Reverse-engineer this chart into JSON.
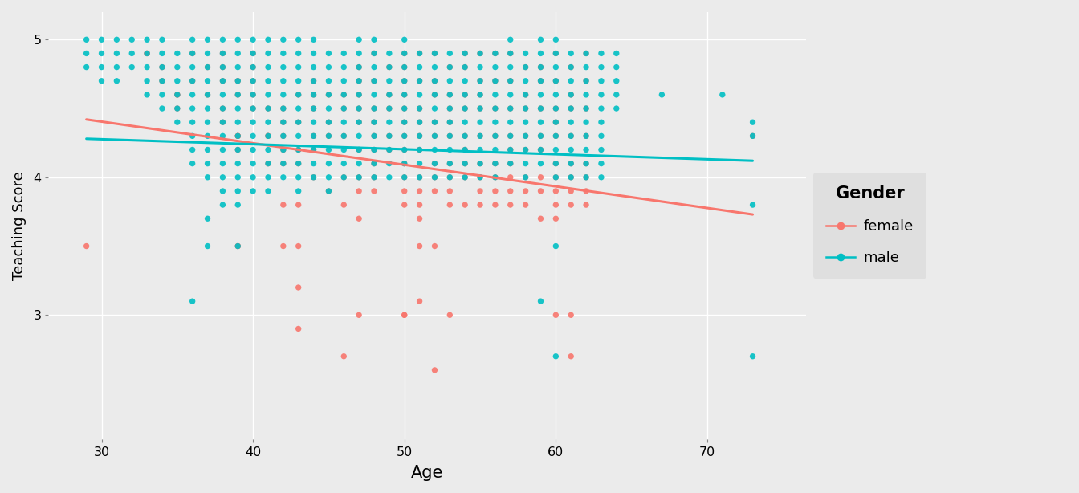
{
  "title": "",
  "xlabel": "Age",
  "ylabel": "Teaching Score",
  "legend_title": "Gender",
  "legend_labels": [
    "female",
    "male"
  ],
  "female_color": "#F8766D",
  "male_color": "#00BFC4",
  "bg_color": "#EBEBEB",
  "panel_bg": "#EBEBEB",
  "legend_bg": "#DCDCDC",
  "grid_color": "#FFFFFF",
  "xlim": [
    26.5,
    76.5
  ],
  "ylim": [
    2.1,
    5.2
  ],
  "xticks": [
    30,
    40,
    50,
    60,
    70
  ],
  "yticks": [
    3,
    4,
    5
  ],
  "female_trend_x": [
    29,
    73
  ],
  "female_trend_y": [
    4.42,
    3.73
  ],
  "male_trend_x": [
    29,
    73
  ],
  "male_trend_y": [
    4.28,
    4.12
  ],
  "marker_size": 28,
  "alpha": 0.9,
  "female_data": [
    [
      29,
      3.5
    ],
    [
      33,
      4.9
    ],
    [
      33,
      4.9
    ],
    [
      34,
      4.8
    ],
    [
      34,
      4.7
    ],
    [
      35,
      4.6
    ],
    [
      35,
      4.6
    ],
    [
      35,
      4.5
    ],
    [
      36,
      4.9
    ],
    [
      36,
      4.7
    ],
    [
      37,
      4.8
    ],
    [
      37,
      4.6
    ],
    [
      38,
      4.9
    ],
    [
      38,
      4.8
    ],
    [
      38,
      4.7
    ],
    [
      38,
      4.5
    ],
    [
      38,
      4.4
    ],
    [
      39,
      4.7
    ],
    [
      39,
      4.6
    ],
    [
      39,
      4.3
    ],
    [
      39,
      4.3
    ],
    [
      39,
      4.3
    ],
    [
      39,
      4.2
    ],
    [
      39,
      3.5
    ],
    [
      39,
      3.5
    ],
    [
      40,
      4.9
    ],
    [
      40,
      4.8
    ],
    [
      40,
      4.7
    ],
    [
      40,
      4.6
    ],
    [
      40,
      4.5
    ],
    [
      41,
      4.5
    ],
    [
      41,
      4.3
    ],
    [
      41,
      4.3
    ],
    [
      41,
      4.1
    ],
    [
      42,
      4.5
    ],
    [
      42,
      4.4
    ],
    [
      42,
      4.3
    ],
    [
      42,
      4.2
    ],
    [
      42,
      4.1
    ],
    [
      42,
      3.8
    ],
    [
      42,
      3.5
    ],
    [
      43,
      4.6
    ],
    [
      43,
      4.4
    ],
    [
      43,
      4.2
    ],
    [
      43,
      4.1
    ],
    [
      43,
      3.8
    ],
    [
      43,
      3.5
    ],
    [
      43,
      3.2
    ],
    [
      43,
      2.9
    ],
    [
      44,
      4.7
    ],
    [
      44,
      4.6
    ],
    [
      44,
      4.5
    ],
    [
      44,
      4.3
    ],
    [
      44,
      4.2
    ],
    [
      44,
      4.0
    ],
    [
      45,
      4.6
    ],
    [
      45,
      4.4
    ],
    [
      45,
      4.3
    ],
    [
      45,
      3.9
    ],
    [
      46,
      4.6
    ],
    [
      46,
      4.5
    ],
    [
      46,
      4.3
    ],
    [
      46,
      4.0
    ],
    [
      46,
      3.8
    ],
    [
      46,
      2.7
    ],
    [
      47,
      4.8
    ],
    [
      47,
      4.7
    ],
    [
      47,
      4.6
    ],
    [
      47,
      4.5
    ],
    [
      47,
      4.4
    ],
    [
      47,
      4.2
    ],
    [
      47,
      4.0
    ],
    [
      47,
      3.9
    ],
    [
      47,
      3.7
    ],
    [
      47,
      3.0
    ],
    [
      48,
      4.9
    ],
    [
      48,
      4.7
    ],
    [
      48,
      4.5
    ],
    [
      48,
      4.4
    ],
    [
      48,
      4.3
    ],
    [
      48,
      4.2
    ],
    [
      48,
      4.1
    ],
    [
      48,
      4.0
    ],
    [
      48,
      3.9
    ],
    [
      49,
      4.8
    ],
    [
      49,
      4.6
    ],
    [
      49,
      4.5
    ],
    [
      49,
      4.3
    ],
    [
      49,
      4.2
    ],
    [
      50,
      4.9
    ],
    [
      50,
      4.8
    ],
    [
      50,
      4.7
    ],
    [
      50,
      4.6
    ],
    [
      50,
      4.5
    ],
    [
      50,
      4.4
    ],
    [
      50,
      4.3
    ],
    [
      50,
      4.2
    ],
    [
      50,
      4.1
    ],
    [
      50,
      4.0
    ],
    [
      50,
      3.9
    ],
    [
      50,
      3.8
    ],
    [
      50,
      3.0
    ],
    [
      50,
      3.0
    ],
    [
      51,
      4.9
    ],
    [
      51,
      4.7
    ],
    [
      51,
      4.5
    ],
    [
      51,
      4.4
    ],
    [
      51,
      4.3
    ],
    [
      51,
      4.2
    ],
    [
      51,
      4.0
    ],
    [
      51,
      3.9
    ],
    [
      51,
      3.8
    ],
    [
      51,
      3.7
    ],
    [
      51,
      3.5
    ],
    [
      51,
      3.1
    ],
    [
      52,
      4.9
    ],
    [
      52,
      4.7
    ],
    [
      52,
      4.6
    ],
    [
      52,
      4.4
    ],
    [
      52,
      4.3
    ],
    [
      52,
      4.1
    ],
    [
      52,
      4.0
    ],
    [
      52,
      3.9
    ],
    [
      52,
      3.5
    ],
    [
      52,
      2.6
    ],
    [
      53,
      4.8
    ],
    [
      53,
      4.6
    ],
    [
      53,
      4.5
    ],
    [
      53,
      4.4
    ],
    [
      53,
      4.3
    ],
    [
      53,
      4.1
    ],
    [
      53,
      4.0
    ],
    [
      53,
      3.9
    ],
    [
      53,
      3.8
    ],
    [
      53,
      3.0
    ],
    [
      54,
      4.9
    ],
    [
      54,
      4.8
    ],
    [
      54,
      4.6
    ],
    [
      54,
      4.5
    ],
    [
      54,
      4.3
    ],
    [
      54,
      4.2
    ],
    [
      54,
      4.1
    ],
    [
      54,
      4.0
    ],
    [
      54,
      3.8
    ],
    [
      55,
      4.9
    ],
    [
      55,
      4.7
    ],
    [
      55,
      4.6
    ],
    [
      55,
      4.5
    ],
    [
      55,
      4.3
    ],
    [
      55,
      4.1
    ],
    [
      55,
      4.0
    ],
    [
      55,
      3.9
    ],
    [
      55,
      3.8
    ],
    [
      56,
      4.9
    ],
    [
      56,
      4.7
    ],
    [
      56,
      4.5
    ],
    [
      56,
      4.3
    ],
    [
      56,
      4.1
    ],
    [
      56,
      4.0
    ],
    [
      56,
      3.9
    ],
    [
      56,
      3.8
    ],
    [
      57,
      4.9
    ],
    [
      57,
      4.7
    ],
    [
      57,
      4.5
    ],
    [
      57,
      4.3
    ],
    [
      57,
      4.2
    ],
    [
      57,
      4.1
    ],
    [
      57,
      4.0
    ],
    [
      57,
      3.9
    ],
    [
      57,
      3.8
    ],
    [
      58,
      4.8
    ],
    [
      58,
      4.6
    ],
    [
      58,
      4.5
    ],
    [
      58,
      4.3
    ],
    [
      58,
      4.2
    ],
    [
      58,
      4.0
    ],
    [
      58,
      3.9
    ],
    [
      58,
      3.8
    ],
    [
      59,
      4.8
    ],
    [
      59,
      4.7
    ],
    [
      59,
      4.5
    ],
    [
      59,
      4.3
    ],
    [
      59,
      4.2
    ],
    [
      59,
      4.0
    ],
    [
      59,
      3.9
    ],
    [
      59,
      3.7
    ],
    [
      60,
      4.9
    ],
    [
      60,
      4.7
    ],
    [
      60,
      4.5
    ],
    [
      60,
      4.4
    ],
    [
      60,
      4.3
    ],
    [
      60,
      4.1
    ],
    [
      60,
      4.0
    ],
    [
      60,
      3.9
    ],
    [
      60,
      3.8
    ],
    [
      60,
      3.7
    ],
    [
      60,
      3.0
    ],
    [
      61,
      4.8
    ],
    [
      61,
      4.6
    ],
    [
      61,
      4.5
    ],
    [
      61,
      4.3
    ],
    [
      61,
      4.1
    ],
    [
      61,
      4.0
    ],
    [
      61,
      3.9
    ],
    [
      61,
      3.8
    ],
    [
      61,
      3.0
    ],
    [
      61,
      2.7
    ],
    [
      62,
      4.9
    ],
    [
      62,
      4.7
    ],
    [
      62,
      4.5
    ],
    [
      62,
      4.3
    ],
    [
      62,
      4.1
    ],
    [
      62,
      4.0
    ],
    [
      62,
      3.9
    ],
    [
      62,
      3.8
    ],
    [
      73,
      4.3
    ]
  ],
  "male_data": [
    [
      29,
      5.0
    ],
    [
      29,
      4.9
    ],
    [
      29,
      4.8
    ],
    [
      30,
      5.0
    ],
    [
      30,
      4.9
    ],
    [
      30,
      4.8
    ],
    [
      30,
      4.7
    ],
    [
      31,
      5.0
    ],
    [
      31,
      4.9
    ],
    [
      31,
      4.8
    ],
    [
      31,
      4.7
    ],
    [
      32,
      5.0
    ],
    [
      32,
      4.9
    ],
    [
      32,
      4.8
    ],
    [
      33,
      5.0
    ],
    [
      33,
      4.9
    ],
    [
      33,
      4.8
    ],
    [
      33,
      4.7
    ],
    [
      33,
      4.6
    ],
    [
      34,
      5.0
    ],
    [
      34,
      4.9
    ],
    [
      34,
      4.8
    ],
    [
      34,
      4.7
    ],
    [
      34,
      4.6
    ],
    [
      34,
      4.5
    ],
    [
      35,
      4.9
    ],
    [
      35,
      4.8
    ],
    [
      35,
      4.7
    ],
    [
      35,
      4.6
    ],
    [
      35,
      4.5
    ],
    [
      35,
      4.4
    ],
    [
      36,
      5.0
    ],
    [
      36,
      4.9
    ],
    [
      36,
      4.8
    ],
    [
      36,
      4.7
    ],
    [
      36,
      4.6
    ],
    [
      36,
      4.5
    ],
    [
      36,
      4.4
    ],
    [
      36,
      4.3
    ],
    [
      36,
      4.2
    ],
    [
      36,
      4.1
    ],
    [
      36,
      3.1
    ],
    [
      37,
      5.0
    ],
    [
      37,
      4.9
    ],
    [
      37,
      4.8
    ],
    [
      37,
      4.7
    ],
    [
      37,
      4.6
    ],
    [
      37,
      4.5
    ],
    [
      37,
      4.4
    ],
    [
      37,
      4.3
    ],
    [
      37,
      4.2
    ],
    [
      37,
      4.1
    ],
    [
      37,
      4.0
    ],
    [
      37,
      3.7
    ],
    [
      37,
      3.5
    ],
    [
      38,
      5.0
    ],
    [
      38,
      4.9
    ],
    [
      38,
      4.8
    ],
    [
      38,
      4.7
    ],
    [
      38,
      4.6
    ],
    [
      38,
      4.5
    ],
    [
      38,
      4.4
    ],
    [
      38,
      4.3
    ],
    [
      38,
      4.2
    ],
    [
      38,
      4.1
    ],
    [
      38,
      4.0
    ],
    [
      38,
      3.9
    ],
    [
      38,
      3.8
    ],
    [
      39,
      5.0
    ],
    [
      39,
      4.9
    ],
    [
      39,
      4.8
    ],
    [
      39,
      4.7
    ],
    [
      39,
      4.6
    ],
    [
      39,
      4.5
    ],
    [
      39,
      4.4
    ],
    [
      39,
      4.3
    ],
    [
      39,
      4.2
    ],
    [
      39,
      4.1
    ],
    [
      39,
      4.0
    ],
    [
      39,
      3.9
    ],
    [
      39,
      3.8
    ],
    [
      39,
      3.5
    ],
    [
      40,
      5.0
    ],
    [
      40,
      4.9
    ],
    [
      40,
      4.8
    ],
    [
      40,
      4.7
    ],
    [
      40,
      4.6
    ],
    [
      40,
      4.5
    ],
    [
      40,
      4.4
    ],
    [
      40,
      4.3
    ],
    [
      40,
      4.2
    ],
    [
      40,
      4.1
    ],
    [
      40,
      4.0
    ],
    [
      40,
      3.9
    ],
    [
      41,
      5.0
    ],
    [
      41,
      4.9
    ],
    [
      41,
      4.8
    ],
    [
      41,
      4.7
    ],
    [
      41,
      4.6
    ],
    [
      41,
      4.5
    ],
    [
      41,
      4.4
    ],
    [
      41,
      4.3
    ],
    [
      41,
      4.2
    ],
    [
      41,
      4.1
    ],
    [
      41,
      4.0
    ],
    [
      41,
      3.9
    ],
    [
      42,
      5.0
    ],
    [
      42,
      4.9
    ],
    [
      42,
      4.8
    ],
    [
      42,
      4.7
    ],
    [
      42,
      4.6
    ],
    [
      42,
      4.5
    ],
    [
      42,
      4.4
    ],
    [
      42,
      4.3
    ],
    [
      42,
      4.2
    ],
    [
      42,
      4.1
    ],
    [
      42,
      4.0
    ],
    [
      43,
      5.0
    ],
    [
      43,
      4.9
    ],
    [
      43,
      4.8
    ],
    [
      43,
      4.7
    ],
    [
      43,
      4.6
    ],
    [
      43,
      4.5
    ],
    [
      43,
      4.4
    ],
    [
      43,
      4.3
    ],
    [
      43,
      4.2
    ],
    [
      43,
      4.1
    ],
    [
      43,
      4.0
    ],
    [
      43,
      3.9
    ],
    [
      44,
      5.0
    ],
    [
      44,
      4.9
    ],
    [
      44,
      4.8
    ],
    [
      44,
      4.7
    ],
    [
      44,
      4.6
    ],
    [
      44,
      4.5
    ],
    [
      44,
      4.4
    ],
    [
      44,
      4.3
    ],
    [
      44,
      4.2
    ],
    [
      44,
      4.1
    ],
    [
      44,
      4.0
    ],
    [
      45,
      4.9
    ],
    [
      45,
      4.8
    ],
    [
      45,
      4.7
    ],
    [
      45,
      4.6
    ],
    [
      45,
      4.5
    ],
    [
      45,
      4.4
    ],
    [
      45,
      4.3
    ],
    [
      45,
      4.2
    ],
    [
      45,
      4.1
    ],
    [
      45,
      4.0
    ],
    [
      45,
      3.9
    ],
    [
      46,
      4.9
    ],
    [
      46,
      4.8
    ],
    [
      46,
      4.7
    ],
    [
      46,
      4.6
    ],
    [
      46,
      4.5
    ],
    [
      46,
      4.4
    ],
    [
      46,
      4.3
    ],
    [
      46,
      4.2
    ],
    [
      46,
      4.1
    ],
    [
      46,
      4.0
    ],
    [
      47,
      5.0
    ],
    [
      47,
      4.9
    ],
    [
      47,
      4.8
    ],
    [
      47,
      4.7
    ],
    [
      47,
      4.6
    ],
    [
      47,
      4.5
    ],
    [
      47,
      4.4
    ],
    [
      47,
      4.3
    ],
    [
      47,
      4.2
    ],
    [
      47,
      4.1
    ],
    [
      47,
      4.0
    ],
    [
      48,
      5.0
    ],
    [
      48,
      4.9
    ],
    [
      48,
      4.8
    ],
    [
      48,
      4.7
    ],
    [
      48,
      4.6
    ],
    [
      48,
      4.5
    ],
    [
      48,
      4.4
    ],
    [
      48,
      4.3
    ],
    [
      48,
      4.2
    ],
    [
      48,
      4.1
    ],
    [
      48,
      4.0
    ],
    [
      49,
      4.9
    ],
    [
      49,
      4.8
    ],
    [
      49,
      4.7
    ],
    [
      49,
      4.6
    ],
    [
      49,
      4.5
    ],
    [
      49,
      4.4
    ],
    [
      49,
      4.3
    ],
    [
      49,
      4.2
    ],
    [
      49,
      4.1
    ],
    [
      49,
      4.0
    ],
    [
      50,
      5.0
    ],
    [
      50,
      4.9
    ],
    [
      50,
      4.8
    ],
    [
      50,
      4.7
    ],
    [
      50,
      4.6
    ],
    [
      50,
      4.5
    ],
    [
      50,
      4.4
    ],
    [
      50,
      4.3
    ],
    [
      50,
      4.2
    ],
    [
      50,
      4.1
    ],
    [
      50,
      4.0
    ],
    [
      51,
      4.9
    ],
    [
      51,
      4.8
    ],
    [
      51,
      4.7
    ],
    [
      51,
      4.6
    ],
    [
      51,
      4.5
    ],
    [
      51,
      4.4
    ],
    [
      51,
      4.3
    ],
    [
      51,
      4.2
    ],
    [
      51,
      4.1
    ],
    [
      51,
      4.0
    ],
    [
      52,
      4.9
    ],
    [
      52,
      4.8
    ],
    [
      52,
      4.7
    ],
    [
      52,
      4.6
    ],
    [
      52,
      4.5
    ],
    [
      52,
      4.4
    ],
    [
      52,
      4.3
    ],
    [
      52,
      4.2
    ],
    [
      52,
      4.1
    ],
    [
      52,
      4.0
    ],
    [
      53,
      4.9
    ],
    [
      53,
      4.8
    ],
    [
      53,
      4.7
    ],
    [
      53,
      4.6
    ],
    [
      53,
      4.5
    ],
    [
      53,
      4.4
    ],
    [
      53,
      4.3
    ],
    [
      53,
      4.2
    ],
    [
      53,
      4.1
    ],
    [
      53,
      4.0
    ],
    [
      54,
      4.9
    ],
    [
      54,
      4.8
    ],
    [
      54,
      4.7
    ],
    [
      54,
      4.6
    ],
    [
      54,
      4.5
    ],
    [
      54,
      4.4
    ],
    [
      54,
      4.3
    ],
    [
      54,
      4.2
    ],
    [
      54,
      4.1
    ],
    [
      54,
      4.0
    ],
    [
      55,
      4.9
    ],
    [
      55,
      4.8
    ],
    [
      55,
      4.7
    ],
    [
      55,
      4.6
    ],
    [
      55,
      4.5
    ],
    [
      55,
      4.4
    ],
    [
      55,
      4.3
    ],
    [
      55,
      4.2
    ],
    [
      55,
      4.1
    ],
    [
      55,
      4.0
    ],
    [
      56,
      4.9
    ],
    [
      56,
      4.8
    ],
    [
      56,
      4.7
    ],
    [
      56,
      4.6
    ],
    [
      56,
      4.5
    ],
    [
      56,
      4.4
    ],
    [
      56,
      4.3
    ],
    [
      56,
      4.2
    ],
    [
      56,
      4.1
    ],
    [
      56,
      4.0
    ],
    [
      57,
      5.0
    ],
    [
      57,
      4.9
    ],
    [
      57,
      4.8
    ],
    [
      57,
      4.7
    ],
    [
      57,
      4.6
    ],
    [
      57,
      4.5
    ],
    [
      57,
      4.4
    ],
    [
      57,
      4.3
    ],
    [
      57,
      4.2
    ],
    [
      57,
      4.1
    ],
    [
      58,
      4.9
    ],
    [
      58,
      4.8
    ],
    [
      58,
      4.7
    ],
    [
      58,
      4.6
    ],
    [
      58,
      4.5
    ],
    [
      58,
      4.4
    ],
    [
      58,
      4.3
    ],
    [
      58,
      4.2
    ],
    [
      58,
      4.1
    ],
    [
      58,
      4.0
    ],
    [
      59,
      5.0
    ],
    [
      59,
      4.9
    ],
    [
      59,
      4.8
    ],
    [
      59,
      4.7
    ],
    [
      59,
      4.6
    ],
    [
      59,
      4.5
    ],
    [
      59,
      4.4
    ],
    [
      59,
      4.3
    ],
    [
      59,
      4.2
    ],
    [
      59,
      4.1
    ],
    [
      59,
      3.1
    ],
    [
      60,
      5.0
    ],
    [
      60,
      4.9
    ],
    [
      60,
      4.8
    ],
    [
      60,
      4.7
    ],
    [
      60,
      4.6
    ],
    [
      60,
      4.5
    ],
    [
      60,
      4.4
    ],
    [
      60,
      4.3
    ],
    [
      60,
      4.2
    ],
    [
      60,
      4.1
    ],
    [
      60,
      4.0
    ],
    [
      60,
      3.5
    ],
    [
      60,
      2.7
    ],
    [
      61,
      4.9
    ],
    [
      61,
      4.8
    ],
    [
      61,
      4.7
    ],
    [
      61,
      4.6
    ],
    [
      61,
      4.5
    ],
    [
      61,
      4.4
    ],
    [
      61,
      4.3
    ],
    [
      61,
      4.2
    ],
    [
      61,
      4.1
    ],
    [
      61,
      4.0
    ],
    [
      62,
      4.9
    ],
    [
      62,
      4.8
    ],
    [
      62,
      4.7
    ],
    [
      62,
      4.6
    ],
    [
      62,
      4.5
    ],
    [
      62,
      4.4
    ],
    [
      62,
      4.3
    ],
    [
      62,
      4.2
    ],
    [
      62,
      4.1
    ],
    [
      62,
      4.0
    ],
    [
      63,
      4.9
    ],
    [
      63,
      4.8
    ],
    [
      63,
      4.7
    ],
    [
      63,
      4.6
    ],
    [
      63,
      4.5
    ],
    [
      63,
      4.4
    ],
    [
      63,
      4.3
    ],
    [
      63,
      4.2
    ],
    [
      63,
      4.1
    ],
    [
      63,
      4.0
    ],
    [
      64,
      4.9
    ],
    [
      64,
      4.8
    ],
    [
      64,
      4.7
    ],
    [
      64,
      4.6
    ],
    [
      64,
      4.5
    ],
    [
      67,
      4.6
    ],
    [
      71,
      4.6
    ],
    [
      73,
      4.4
    ],
    [
      73,
      4.3
    ],
    [
      73,
      3.8
    ],
    [
      73,
      2.7
    ]
  ]
}
